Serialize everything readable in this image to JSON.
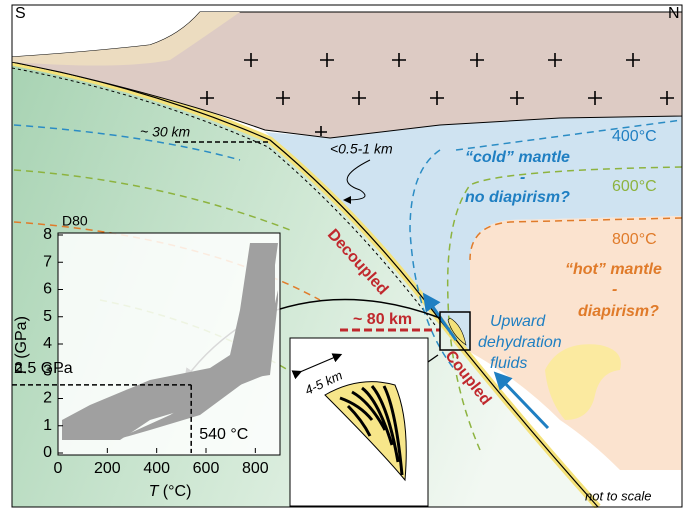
{
  "compass": {
    "left": "S",
    "right": "N"
  },
  "depths": {
    "moho": "~ 30 km",
    "channel": "<0.5-1 km",
    "decoupling": "~ 80 km",
    "zoom": "4-5 km"
  },
  "isotherms": [
    "400°C",
    "600°C",
    "800°C"
  ],
  "mantle": {
    "cold": [
      "“cold” mantle",
      "-",
      "no diapirism?"
    ],
    "hot": [
      "“hot” mantle",
      "-",
      "diapirism?"
    ]
  },
  "interface": {
    "upper": "Decoupled",
    "lower": "Coupled"
  },
  "fluids": [
    "Upward",
    "dehydration",
    "fluids"
  ],
  "note": "not to scale",
  "inset": {
    "title": "D80",
    "y_label": {
      "symbol": "P",
      "unit": " (GPa)"
    },
    "x_label": {
      "symbol": "T",
      "unit": " (°C)"
    },
    "ylim": [
      0,
      8
    ],
    "yticks": [
      0,
      1,
      2,
      3,
      4,
      5,
      6,
      7,
      8
    ],
    "xlim": [
      0,
      900
    ],
    "xticks": [
      0,
      200,
      400,
      600,
      800
    ],
    "peak": {
      "P": 2.5,
      "P_label": "2.5 GPa",
      "T": 540,
      "T_label": "540 °C"
    }
  }
}
